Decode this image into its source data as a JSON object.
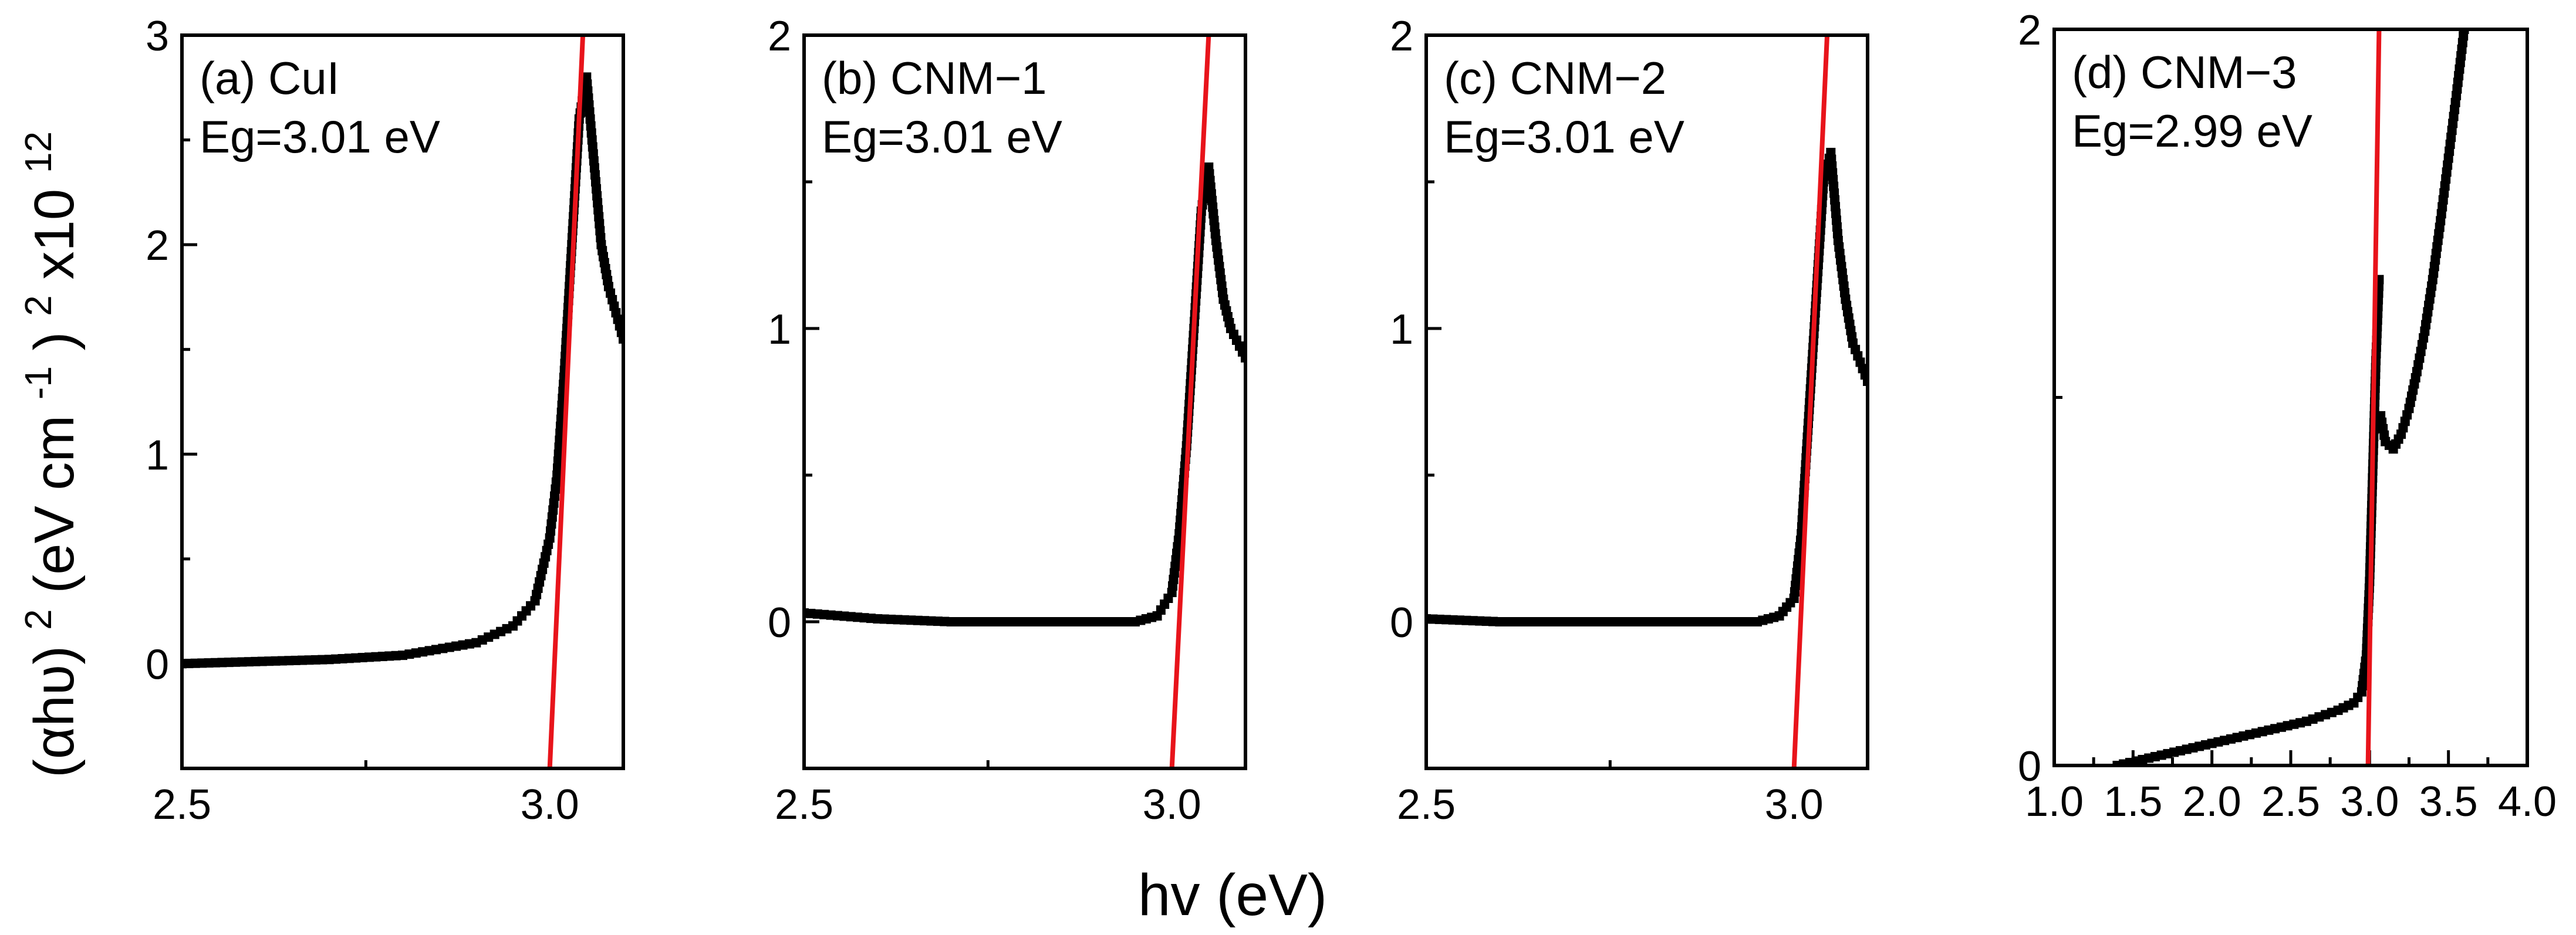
{
  "figure": {
    "ylabel_prefix": "(αhυ)",
    "ylabel_exp1": "2",
    "ylabel_units_a": " (eV cm",
    "ylabel_exp2": "-1",
    "ylabel_units_b": ")",
    "ylabel_exp3": "2",
    "ylabel_mult": "x10",
    "ylabel_exp4": "12",
    "xlabel": "hv (eV)"
  },
  "colors": {
    "data": "#000000",
    "fit": "#e8141b",
    "axis": "#000000"
  },
  "chart_data": [
    {
      "type": "scatter",
      "panel_label": "(a) CuI",
      "eg_label": "Eg=3.01 eV",
      "xlim": [
        2.5,
        3.1
      ],
      "ylim": [
        -0.5,
        3
      ],
      "xticks": [
        2.5,
        3.0
      ],
      "xtick_labels": [
        "2.5",
        "3.0"
      ],
      "yticks": [
        0,
        1,
        2,
        3
      ],
      "ytick_labels": [
        "0",
        "1",
        "2",
        "3"
      ],
      "series": [
        {
          "name": "data",
          "x": [
            2.5,
            2.6,
            2.7,
            2.8,
            2.9,
            2.95,
            2.98,
            2.99,
            3.0,
            3.01,
            3.02,
            3.03,
            3.04,
            3.05,
            3.06,
            3.07,
            3.08,
            3.1
          ],
          "y": [
            0.0,
            0.01,
            0.02,
            0.04,
            0.1,
            0.18,
            0.3,
            0.45,
            0.6,
            0.9,
            1.4,
            2.0,
            2.6,
            2.8,
            2.4,
            2.0,
            1.8,
            1.55
          ]
        }
      ],
      "fit_line": {
        "x": [
          3.0,
          3.045
        ],
        "y": [
          -0.5,
          3.0
        ]
      }
    },
    {
      "type": "scatter",
      "panel_label": "(b) CNM−1",
      "eg_label": "Eg=3.01 eV",
      "xlim": [
        2.5,
        3.1
      ],
      "ylim": [
        -0.5,
        2
      ],
      "xticks": [
        2.5,
        3.0
      ],
      "xtick_labels": [
        "2.5",
        "3.0"
      ],
      "yticks": [
        0,
        1,
        2
      ],
      "ytick_labels": [
        "0",
        "1",
        "2"
      ],
      "series": [
        {
          "name": "data",
          "x": [
            2.5,
            2.6,
            2.7,
            2.8,
            2.9,
            2.95,
            2.98,
            3.0,
            3.01,
            3.02,
            3.03,
            3.04,
            3.05,
            3.06,
            3.07,
            3.08,
            3.1
          ],
          "y": [
            0.03,
            0.01,
            0.0,
            0.0,
            0.0,
            0.0,
            0.02,
            0.1,
            0.3,
            0.6,
            1.0,
            1.4,
            1.55,
            1.3,
            1.1,
            1.0,
            0.9
          ]
        }
      ],
      "fit_line": {
        "x": [
          3.0,
          3.05
        ],
        "y": [
          -0.5,
          2.0
        ]
      }
    },
    {
      "type": "scatter",
      "panel_label": "(c) CNM−2",
      "eg_label": "Eg=3.01 eV",
      "xlim": [
        2.5,
        3.1
      ],
      "ylim": [
        -0.5,
        2
      ],
      "xticks": [
        2.5,
        3.0
      ],
      "xtick_labels": [
        "2.5",
        "3.0"
      ],
      "yticks": [
        0,
        1,
        2
      ],
      "ytick_labels": [
        "0",
        "1",
        "2"
      ],
      "series": [
        {
          "name": "data",
          "x": [
            2.5,
            2.6,
            2.7,
            2.8,
            2.9,
            2.95,
            2.98,
            3.0,
            3.01,
            3.02,
            3.03,
            3.04,
            3.05,
            3.06,
            3.07,
            3.08,
            3.1
          ],
          "y": [
            0.01,
            0.0,
            0.0,
            0.0,
            0.0,
            0.0,
            0.02,
            0.08,
            0.3,
            0.7,
            1.1,
            1.5,
            1.6,
            1.3,
            1.1,
            0.95,
            0.82
          ]
        }
      ],
      "fit_line": {
        "x": [
          3.0,
          3.045
        ],
        "y": [
          -0.5,
          2.0
        ]
      }
    },
    {
      "type": "scatter",
      "panel_label": "(d) CNM−3",
      "eg_label": "Eg=2.99 eV",
      "xlim": [
        1.0,
        4.0
      ],
      "ylim": [
        0,
        2
      ],
      "xticks": [
        1.0,
        1.5,
        2.0,
        2.5,
        3.0,
        3.5,
        4.0
      ],
      "xtick_labels": [
        "1.0",
        "1.5",
        "2.0",
        "2.5",
        "3.0",
        "3.5",
        "4.0"
      ],
      "yticks": [
        0,
        2
      ],
      "ytick_labels": [
        "0",
        "2"
      ],
      "series": [
        {
          "name": "data",
          "x": [
            1.4,
            1.6,
            1.8,
            2.0,
            2.2,
            2.4,
            2.6,
            2.8,
            2.9,
            2.95,
            2.98,
            3.0,
            3.02,
            3.04,
            3.06
          ],
          "y": [
            0.0,
            0.02,
            0.04,
            0.06,
            0.08,
            0.1,
            0.12,
            0.15,
            0.17,
            0.2,
            0.3,
            0.5,
            0.8,
            1.1,
            1.32
          ]
        },
        {
          "name": "data",
          "x": [
            3.07,
            3.1,
            3.15,
            3.2,
            3.25,
            3.3,
            3.35,
            3.4,
            3.45,
            3.5,
            3.55,
            3.6
          ],
          "y": [
            0.95,
            0.88,
            0.86,
            0.9,
            0.97,
            1.07,
            1.18,
            1.32,
            1.48,
            1.65,
            1.82,
            2.0
          ]
        }
      ],
      "fit_line": {
        "x": [
          2.99,
          3.06
        ],
        "y": [
          0,
          2.0
        ]
      }
    }
  ]
}
